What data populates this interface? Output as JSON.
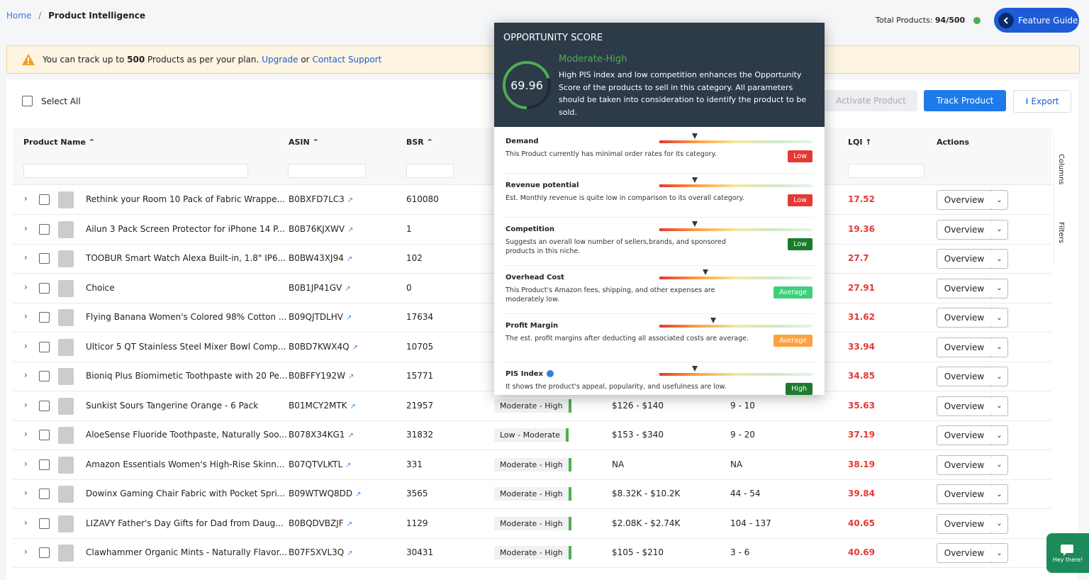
{
  "breadcrumb": {
    "home": "Home",
    "separator": "/",
    "current": "Product Intelligence"
  },
  "header": {
    "total_label": "Total Products:",
    "total_value": "94/500",
    "feature_guide": "Feature Guide"
  },
  "notice": {
    "text1": "You can track up to",
    "limit": "500",
    "text2": "Products as per your plan.",
    "upgrade": "Upgrade",
    "or": "or",
    "support": "Contact Support"
  },
  "toolbar": {
    "select_all": "Select All",
    "activate": "Activate Product",
    "track": "Track Product",
    "export": "Export"
  },
  "columns": {
    "name": "Product Name",
    "asin": "ASIN",
    "bsr": "BSR",
    "lqi": "LQI",
    "actions": "Actions"
  },
  "action_button": "Overview",
  "side_tabs": [
    "Columns",
    "Filters"
  ],
  "chat": "Hey there!",
  "rows": [
    {
      "name": "Rethink your Room 10 Pack of Fabric Wrappe...",
      "asin": "B0BXFD7LC3",
      "bsr": "610080",
      "lqi": "17.52"
    },
    {
      "name": "Ailun 3 Pack Screen Protector for iPhone 14 P...",
      "asin": "B0B76KJXWV",
      "bsr": "1",
      "lqi": "19.36"
    },
    {
      "name": "TOOBUR Smart Watch Alexa Built-in, 1.8\" IP6...",
      "asin": "B0BW43XJ94",
      "bsr": "102",
      "lqi": "27.7"
    },
    {
      "name": "Choice",
      "asin": "B0B1JP41GV",
      "bsr": "0",
      "lqi": "27.91"
    },
    {
      "name": "Flying Banana Women's Colored 98% Cotton ...",
      "asin": "B09QJTDLHV",
      "bsr": "17634",
      "lqi": "31.62"
    },
    {
      "name": "Ulticor 5 QT Stainless Steel Mixer Bowl Comp...",
      "asin": "B0BD7KWX4Q",
      "bsr": "10705",
      "lqi": "33.94"
    },
    {
      "name": "Bioniq Plus Biomimetic Toothpaste with 20 Pe...",
      "asin": "B0BFFY192W",
      "bsr": "15771",
      "lqi": "34.85"
    },
    {
      "name": "Sunkist Sours Tangerine Orange - 6 Pack",
      "asin": "B01MCY2MTK",
      "bsr": "21957",
      "opportunity": "Moderate - High",
      "price": "$126 - $140",
      "range": "9 - 10",
      "lqi": "35.63"
    },
    {
      "name": "AloeSense Fluoride Toothpaste, Naturally Soo...",
      "asin": "B078X34KG1",
      "bsr": "31832",
      "opportunity": "Low - Moderate",
      "price": "$153 - $340",
      "range": "9 - 20",
      "lqi": "37.19"
    },
    {
      "name": "Amazon Essentials Women's High-Rise Skinn...",
      "asin": "B07QTVLKTL",
      "bsr": "331",
      "opportunity": "Moderate - High",
      "price": "NA",
      "range": "NA",
      "lqi": "38.19"
    },
    {
      "name": "Dowinx Gaming Chair Fabric with Pocket Spri...",
      "asin": "B09WTWQ8DD",
      "bsr": "3565",
      "opportunity": "Moderate - High",
      "price": "$8.32K - $10.2K",
      "range": "44 - 54",
      "lqi": "39.84"
    },
    {
      "name": "LIZAVY Father's Day Gifts for Dad from Daug...",
      "asin": "B0BQDVBZJF",
      "bsr": "1129",
      "opportunity": "Moderate - High",
      "price": "$2.08K - $2.74K",
      "range": "104 - 137",
      "lqi": "40.65"
    },
    {
      "name": "Clawhammer Organic Mints - Naturally Flavor...",
      "asin": "B07F5XVL3Q",
      "bsr": "30431",
      "opportunity": "Moderate - High",
      "price": "$105 - $210",
      "range": "3 - 6",
      "lqi": "40.69"
    }
  ],
  "popup": {
    "title": "OPPORTUNITY SCORE",
    "score": 69.96,
    "level": "Moderate-High",
    "description": "High PIS index and low competition enhances the Opportunity Score of the products to sell in this category. All parameters should be taken into consideration to identify the product to be sold.",
    "params": [
      {
        "name": "Demand",
        "description": "This Product currently has minimal order rates for its category.",
        "badge": "Low",
        "badge_color": "#e53935",
        "meter": 23
      },
      {
        "name": "Revenue potential",
        "description": "Est. Monthly revenue is quite low in comparison to its overall category.",
        "badge": "Low",
        "badge_color": "#e53935",
        "meter": 23
      },
      {
        "name": "Competition",
        "description": "Suggests an overall low number of sellers,brands, and sponsored products in this niche.",
        "badge": "Low",
        "badge_color": "#1b7a2c",
        "meter": 23
      },
      {
        "name": "Overhead Cost",
        "description": "This Product's Amazon fees, shipping, and other expenses are moderately low.",
        "badge": "Average",
        "badge_color": "#3ecf7a",
        "meter": 30
      },
      {
        "name": "Profit Margin",
        "description": "The est. profit margins after deducting all associated costs are average.",
        "badge": "Average",
        "badge_color": "#ffa040",
        "meter": 35
      },
      {
        "name": "PIS Index",
        "description": "It shows the product's appeal, popularity, and usefulness are low.",
        "badge": "High",
        "badge_color": "#1b7a2c",
        "meter": 23
      }
    ]
  }
}
